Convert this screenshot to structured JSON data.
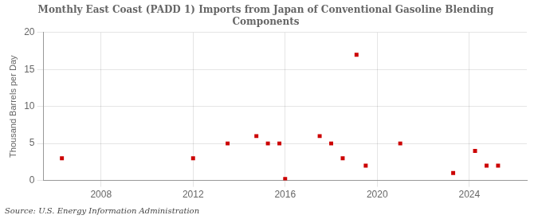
{
  "chart_data": {
    "type": "scatter",
    "title": "Monthly East Coast (PADD 1) Imports from Japan of Conventional Gasoline Blending\nComponents",
    "ylabel": "Thousand Barrels per Day",
    "annotation": "Source: U.S. Energy Information Administration",
    "x": [
      2006.3,
      2012.0,
      2013.5,
      2014.75,
      2015.25,
      2015.75,
      2016.0,
      2017.5,
      2018.0,
      2018.5,
      2019.1,
      2019.5,
      2021.0,
      2023.3,
      2024.25,
      2024.75,
      2025.25
    ],
    "values": [
      3,
      3,
      5,
      6,
      5,
      5,
      0.2,
      6,
      5,
      3,
      17,
      2,
      5,
      1,
      4,
      2,
      2
    ],
    "color": "#cc0000",
    "marker": "square",
    "xlim": [
      2005.5,
      2026.5
    ],
    "xticks": [
      2008,
      2012,
      2016,
      2020,
      2024
    ],
    "ylim": [
      0,
      20
    ],
    "yticks": [
      0,
      5,
      10,
      15,
      20
    ],
    "grid": true
  }
}
